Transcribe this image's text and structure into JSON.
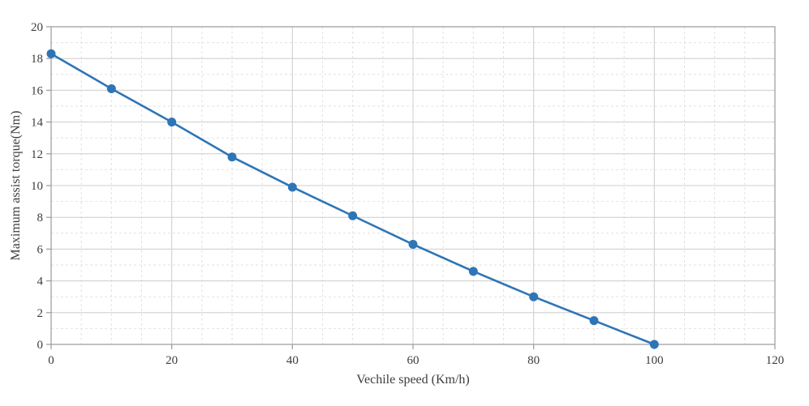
{
  "chart_data": {
    "type": "line",
    "title": "",
    "xlabel": "Vechile speed (Km/h)",
    "ylabel": "Maximum assist torque(Nm)",
    "x": [
      0,
      10,
      20,
      30,
      40,
      50,
      60,
      70,
      80,
      90,
      100
    ],
    "series": [
      {
        "name": "Maximum assist torque",
        "values": [
          18.3,
          16.1,
          14.0,
          11.8,
          9.9,
          8.1,
          6.3,
          4.6,
          3.0,
          1.5,
          0.0
        ]
      }
    ],
    "xlim": [
      0,
      120
    ],
    "ylim": [
      0,
      20
    ],
    "x_ticks": [
      0,
      20,
      40,
      60,
      80,
      100,
      120
    ],
    "y_ticks": [
      0,
      2,
      4,
      6,
      8,
      10,
      12,
      14,
      16,
      18,
      20
    ],
    "x_minor_step": 5,
    "y_minor_step": 1,
    "grid": "on",
    "legend_position": "none",
    "line_color": "#2e75b6",
    "marker_color": "#2e75b6",
    "minor_grid_color": "#e2e2e2",
    "major_grid_color": "#cfcfcf",
    "axis_color": "#9a9a9a",
    "text_color": "#3d3d3d"
  }
}
